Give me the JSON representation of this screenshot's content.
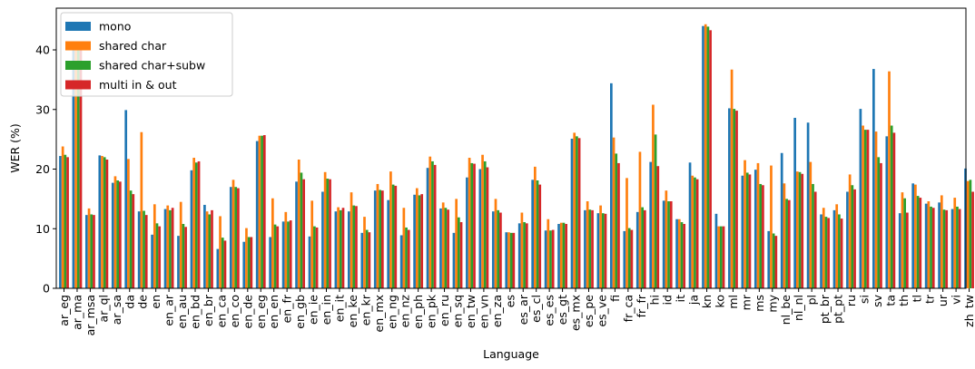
{
  "chart_data": {
    "type": "bar",
    "title": "",
    "xlabel": "Language",
    "ylabel": "WER (%)",
    "ylim": [
      0,
      47
    ],
    "yticks": [
      0,
      10,
      20,
      30,
      40
    ],
    "grid": false,
    "legend_position": "top-left",
    "categories": [
      "ar_eg",
      "ar_ma",
      "ar_msa",
      "ar_ql",
      "ar_sa",
      "da",
      "de",
      "en",
      "en_ar",
      "en_au",
      "en_bd",
      "en_br",
      "en_ca",
      "en_co",
      "en_de",
      "en_eg",
      "en_en",
      "en_fr",
      "en_gb",
      "en_ie",
      "en_in",
      "en_it",
      "en_ke",
      "en_kr",
      "en_mx",
      "en_ng",
      "en_nz",
      "en_ph",
      "en_pk",
      "en_ru",
      "en_sq",
      "en_tw",
      "en_vn",
      "en_za",
      "es",
      "es_ar",
      "es_cl",
      "es_es",
      "es_gt",
      "es_mx",
      "es_pe",
      "es_ve",
      "fi",
      "fr_ca",
      "fr_fr",
      "hi",
      "id",
      "it",
      "ja",
      "kn",
      "ko",
      "ml",
      "mr",
      "ms",
      "my",
      "nl_be",
      "nl_nl",
      "pl",
      "pt_br",
      "pt_pt",
      "ru",
      "si",
      "sv",
      "ta",
      "th",
      "tl",
      "tr",
      "ur",
      "vi",
      "zh_tw"
    ],
    "series": [
      {
        "name": "mono",
        "color": "#1f77b4",
        "values": [
          22.2,
          40.0,
          12.3,
          22.3,
          17.7,
          29.9,
          12.9,
          9.0,
          13.3,
          8.8,
          19.8,
          14.0,
          6.6,
          17.0,
          7.8,
          24.7,
          8.6,
          11.2,
          17.9,
          8.7,
          16.2,
          12.9,
          12.9,
          9.3,
          16.4,
          14.8,
          8.9,
          15.7,
          20.2,
          13.4,
          9.3,
          18.6,
          20.0,
          12.9,
          9.4,
          10.9,
          18.2,
          9.7,
          10.8,
          25.1,
          13.1,
          12.6,
          34.4,
          9.6,
          12.8,
          21.2,
          14.7,
          11.6,
          21.1,
          44.0,
          12.5,
          30.2,
          18.9,
          19.9,
          9.6,
          22.7,
          28.6,
          27.8,
          12.4,
          13.1,
          16.2,
          30.1,
          36.8,
          25.5,
          12.6,
          17.6,
          14.2,
          14.4,
          13.3,
          20.1
        ]
      },
      {
        "name": "shared char",
        "color": "#ff7f0e",
        "values": [
          23.8,
          40.0,
          13.4,
          22.2,
          18.8,
          21.7,
          26.2,
          14.1,
          13.9,
          14.5,
          21.9,
          12.9,
          12.1,
          18.2,
          10.1,
          25.6,
          15.1,
          12.8,
          21.6,
          14.7,
          19.5,
          13.6,
          16.1,
          12.0,
          17.5,
          19.6,
          13.5,
          16.8,
          22.1,
          14.4,
          15.0,
          21.9,
          22.4,
          15.0,
          9.4,
          12.7,
          20.4,
          11.6,
          11.0,
          26.1,
          14.6,
          13.9,
          25.3,
          18.5,
          22.9,
          30.8,
          16.4,
          11.6,
          18.9,
          44.3,
          10.4,
          36.7,
          21.5,
          21.0,
          20.6,
          17.6,
          19.6,
          21.2,
          13.5,
          14.1,
          19.1,
          27.3,
          26.3,
          36.4,
          16.1,
          17.4,
          14.6,
          15.6,
          15.2,
          18.0
        ]
      },
      {
        "name": "shared char+subw",
        "color": "#2ca02c",
        "values": [
          22.4,
          40.0,
          12.4,
          22.0,
          18.1,
          16.4,
          13.0,
          10.9,
          13.1,
          10.8,
          21.1,
          12.4,
          8.5,
          17.0,
          8.6,
          25.6,
          10.7,
          11.2,
          19.4,
          10.4,
          18.4,
          13.1,
          13.9,
          9.8,
          16.5,
          17.4,
          10.2,
          15.6,
          21.3,
          13.5,
          11.9,
          21.0,
          21.3,
          13.1,
          9.3,
          11.1,
          18.1,
          9.7,
          11.0,
          25.5,
          13.2,
          12.6,
          22.6,
          10.1,
          13.6,
          25.8,
          14.6,
          11.1,
          18.6,
          43.9,
          10.4,
          30.1,
          19.4,
          17.5,
          9.2,
          15.0,
          19.5,
          17.5,
          12.0,
          12.4,
          17.3,
          26.6,
          22.0,
          27.3,
          15.1,
          15.5,
          13.7,
          13.2,
          13.7,
          18.2
        ]
      },
      {
        "name": "multi in & out",
        "color": "#d62728",
        "values": [
          22.0,
          40.0,
          12.3,
          21.6,
          17.9,
          15.8,
          12.3,
          10.4,
          13.5,
          10.3,
          21.3,
          13.1,
          8.0,
          16.8,
          8.6,
          25.7,
          10.4,
          11.4,
          18.3,
          10.2,
          18.3,
          13.5,
          13.8,
          9.4,
          16.4,
          17.2,
          9.8,
          15.8,
          20.7,
          13.2,
          11.1,
          20.9,
          20.3,
          12.7,
          9.3,
          10.9,
          17.4,
          9.8,
          10.8,
          25.2,
          13.1,
          12.5,
          21.0,
          9.8,
          13.1,
          20.5,
          14.6,
          10.8,
          18.3,
          43.3,
          10.4,
          29.8,
          19.1,
          17.3,
          8.8,
          14.8,
          19.2,
          16.2,
          11.8,
          11.7,
          16.6,
          26.6,
          21.0,
          26.1,
          12.7,
          15.2,
          13.5,
          13.1,
          13.3,
          16.2
        ]
      }
    ]
  }
}
